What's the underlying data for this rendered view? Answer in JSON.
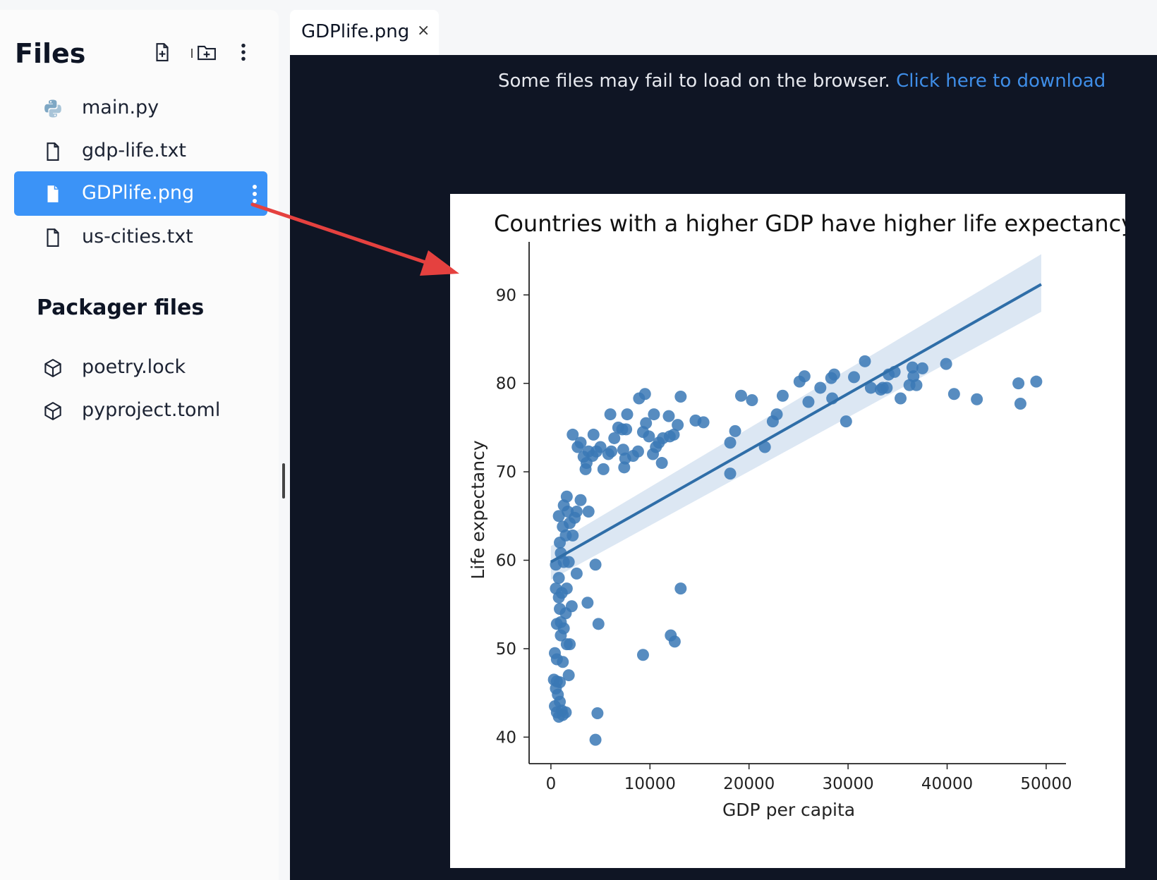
{
  "sidebar": {
    "title": "Files",
    "header_icons": [
      "new-file-icon",
      "new-folder-icon",
      "more-vertical-icon"
    ],
    "files": [
      {
        "label": "main.py",
        "icon": "python-icon"
      },
      {
        "label": "gdp-life.txt",
        "icon": "file-icon"
      },
      {
        "label": "GDPlife.png",
        "icon": "file-filled-icon",
        "active": true
      },
      {
        "label": "us-cities.txt",
        "icon": "file-icon"
      }
    ],
    "packager_title": "Packager files",
    "packager_files": [
      {
        "label": "poetry.lock",
        "icon": "package-icon"
      },
      {
        "label": "pyproject.toml",
        "icon": "package-icon"
      }
    ]
  },
  "tab": {
    "label": "GDPlife.png",
    "close": "×"
  },
  "viewer": {
    "notice": "Some files may fail to load on the browser.",
    "link": "Click here to download"
  },
  "colors": {
    "accent": "#3b93f7",
    "link": "#3f8ee8",
    "viewer_bg": "#0f1524",
    "points": "#3a78b5",
    "arrow": "#e5413f"
  },
  "chart_data": {
    "type": "scatter",
    "title": "Countries with a higher GDP have higher life expectancy",
    "xlabel": "GDP per capita",
    "ylabel": "Life expectancy",
    "xlim": [
      -2200,
      52000
    ],
    "ylim": [
      37,
      96
    ],
    "xticks": [
      0,
      10000,
      20000,
      30000,
      40000,
      50000
    ],
    "yticks": [
      40,
      50,
      60,
      70,
      80,
      90
    ],
    "regression": {
      "x": [
        0,
        49500
      ],
      "y": [
        59.8,
        91.2
      ],
      "ci_start": [
        57.8,
        61.6
      ],
      "ci_end": [
        88.1,
        94.6
      ]
    },
    "points": [
      [
        300,
        46.5
      ],
      [
        600,
        46.3
      ],
      [
        900,
        46.2
      ],
      [
        500,
        45.5
      ],
      [
        700,
        44.8
      ],
      [
        900,
        44
      ],
      [
        400,
        43.5
      ],
      [
        1100,
        43
      ],
      [
        800,
        42.3
      ],
      [
        1200,
        42.5
      ],
      [
        1500,
        42.8
      ],
      [
        600,
        42.8
      ],
      [
        1800,
        47
      ],
      [
        1200,
        48.5
      ],
      [
        600,
        48.8
      ],
      [
        400,
        49.5
      ],
      [
        1600,
        50.5
      ],
      [
        1900,
        50.5
      ],
      [
        1000,
        51.5
      ],
      [
        1300,
        52.3
      ],
      [
        600,
        52.8
      ],
      [
        1000,
        53
      ],
      [
        900,
        54.5
      ],
      [
        1500,
        54
      ],
      [
        2100,
        54.8
      ],
      [
        800,
        55.8
      ],
      [
        1100,
        56.3
      ],
      [
        500,
        56.8
      ],
      [
        1600,
        56.8
      ],
      [
        800,
        58
      ],
      [
        2600,
        58.5
      ],
      [
        500,
        59.5
      ],
      [
        1300,
        59.8
      ],
      [
        1800,
        59.8
      ],
      [
        1000,
        60.8
      ],
      [
        900,
        62
      ],
      [
        1500,
        62.8
      ],
      [
        2200,
        62.8
      ],
      [
        1200,
        63.8
      ],
      [
        1900,
        64.2
      ],
      [
        2400,
        64.8
      ],
      [
        800,
        65
      ],
      [
        1700,
        65.5
      ],
      [
        2600,
        65.5
      ],
      [
        3800,
        65.5
      ],
      [
        1300,
        66.2
      ],
      [
        3000,
        66.8
      ],
      [
        1600,
        67.2
      ],
      [
        4500,
        59.5
      ],
      [
        3700,
        55.2
      ],
      [
        4800,
        52.8
      ],
      [
        4700,
        42.7
      ],
      [
        4500,
        39.7
      ],
      [
        9300,
        49.3
      ],
      [
        12100,
        51.5
      ],
      [
        12500,
        50.8
      ],
      [
        13100,
        56.8
      ],
      [
        2200,
        74.2
      ],
      [
        3000,
        73.3
      ],
      [
        4300,
        74.2
      ],
      [
        2700,
        72.8
      ],
      [
        3300,
        71.7
      ],
      [
        3600,
        71
      ],
      [
        3500,
        70.3
      ],
      [
        3800,
        72.3
      ],
      [
        4200,
        71.8
      ],
      [
        4600,
        72.3
      ],
      [
        5000,
        72.8
      ],
      [
        5300,
        70.3
      ],
      [
        5800,
        72
      ],
      [
        6100,
        72.3
      ],
      [
        6400,
        73.8
      ],
      [
        6800,
        75
      ],
      [
        7200,
        74.8
      ],
      [
        7600,
        74.8
      ],
      [
        7300,
        72.5
      ],
      [
        7500,
        71.5
      ],
      [
        7400,
        70.5
      ],
      [
        8300,
        71.8
      ],
      [
        8800,
        72.3
      ],
      [
        9300,
        74.5
      ],
      [
        9600,
        75.5
      ],
      [
        9900,
        74
      ],
      [
        10400,
        76.5
      ],
      [
        10600,
        72.8
      ],
      [
        10900,
        73.3
      ],
      [
        10300,
        72
      ],
      [
        11200,
        71
      ],
      [
        11300,
        73.8
      ],
      [
        12000,
        74
      ],
      [
        12400,
        74.2
      ],
      [
        12800,
        75.3
      ],
      [
        11900,
        76.3
      ],
      [
        6000,
        76.5
      ],
      [
        7700,
        76.5
      ],
      [
        8900,
        78.3
      ],
      [
        9500,
        78.8
      ],
      [
        13100,
        78.5
      ],
      [
        14600,
        75.8
      ],
      [
        15400,
        75.6
      ],
      [
        18100,
        73.3
      ],
      [
        18600,
        74.6
      ],
      [
        19200,
        78.6
      ],
      [
        20300,
        78.1
      ],
      [
        21600,
        72.8
      ],
      [
        22400,
        75.7
      ],
      [
        22800,
        76.5
      ],
      [
        23400,
        78.6
      ],
      [
        18100,
        69.8
      ],
      [
        25100,
        80.2
      ],
      [
        25600,
        80.8
      ],
      [
        26000,
        77.9
      ],
      [
        27200,
        79.5
      ],
      [
        28300,
        80.6
      ],
      [
        28600,
        81
      ],
      [
        28400,
        78.3
      ],
      [
        29800,
        75.7
      ],
      [
        30600,
        80.7
      ],
      [
        31700,
        82.5
      ],
      [
        32300,
        79.5
      ],
      [
        33300,
        79.3
      ],
      [
        33500,
        79.5
      ],
      [
        33900,
        79.5
      ],
      [
        34100,
        81
      ],
      [
        34700,
        81.3
      ],
      [
        35300,
        78.3
      ],
      [
        36200,
        79.8
      ],
      [
        36500,
        81.8
      ],
      [
        36600,
        80.8
      ],
      [
        36900,
        79.8
      ],
      [
        37500,
        81.7
      ],
      [
        39900,
        82.2
      ],
      [
        40700,
        78.8
      ],
      [
        43000,
        78.2
      ],
      [
        47200,
        80
      ],
      [
        47400,
        77.7
      ],
      [
        49000,
        80.2
      ]
    ]
  }
}
